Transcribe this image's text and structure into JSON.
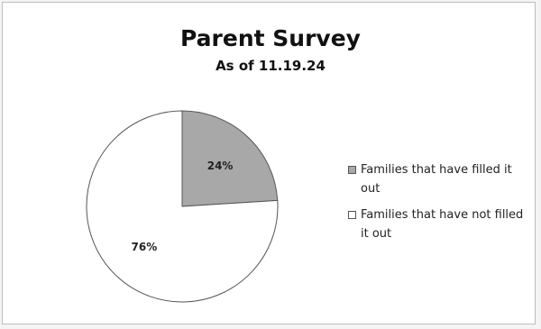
{
  "chart_data": {
    "type": "pie",
    "title": "Parent Survey",
    "subtitle": "As of 11.19.24",
    "slices": [
      {
        "label": "Families that have filled it out",
        "value": 24,
        "display": "24%",
        "color": "#a8a8a8"
      },
      {
        "label": "Families that have not filled it out",
        "value": 76,
        "display": "76%",
        "color": "#ffffff"
      }
    ],
    "legend_position": "right"
  }
}
